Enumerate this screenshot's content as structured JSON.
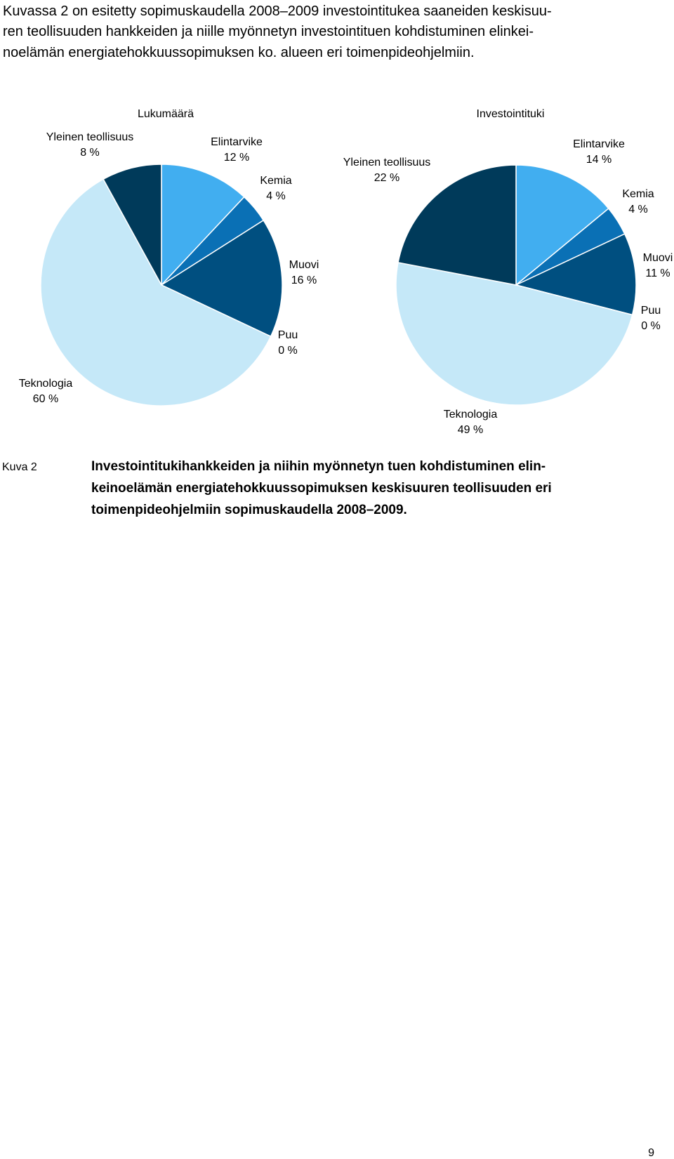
{
  "paragraph": {
    "lines": [
      "Kuvassa 2 on esitetty sopimuskaudella 2008–2009 investointitukea saaneiden keskisuu-",
      "ren teollisuuden hankkeiden ja niille myönnetyn investointituen kohdistuminen elinkei-",
      "noelämän energiatehokkuussopimuksen ko. alueen eri toimenpideohjelmiin."
    ]
  },
  "chart_data": [
    {
      "type": "pie",
      "title": "Lukumäärä",
      "categories": [
        "Elintarvike",
        "Kemia",
        "Muovi",
        "Puu",
        "Teknologia",
        "Yleinen teollisuus"
      ],
      "values": [
        12,
        4,
        16,
        0,
        60,
        8
      ],
      "value_labels": [
        "12 %",
        "4 %",
        "16 %",
        "0 %",
        "60 %",
        "8 %"
      ],
      "colors": [
        "#41aef0",
        "#0a70b5",
        "#004f80",
        "#2a6f99",
        "#c5e8f8",
        "#003a5a"
      ]
    },
    {
      "type": "pie",
      "title": "Investointituki",
      "categories": [
        "Elintarvike",
        "Kemia",
        "Muovi",
        "Puu",
        "Teknologia",
        "Yleinen teollisuus"
      ],
      "values": [
        14,
        4,
        11,
        0,
        49,
        22
      ],
      "value_labels": [
        "14 %",
        "4 %",
        "11 %",
        "0 %",
        "49 %",
        "22 %"
      ],
      "colors": [
        "#41aef0",
        "#0a70b5",
        "#004f80",
        "#2a6f99",
        "#c5e8f8",
        "#003a5a"
      ]
    }
  ],
  "caption": {
    "label": "Kuva 2",
    "lines": [
      "Investointitukihankkeiden ja niihin myönnetyn tuen kohdistuminen elin-",
      "keinoelämän energiatehokkuussopimuksen keskisuuren teollisuuden eri",
      "toimenpideohjelmiin sopimuskaudella 2008–2009."
    ]
  },
  "page_number": "9"
}
